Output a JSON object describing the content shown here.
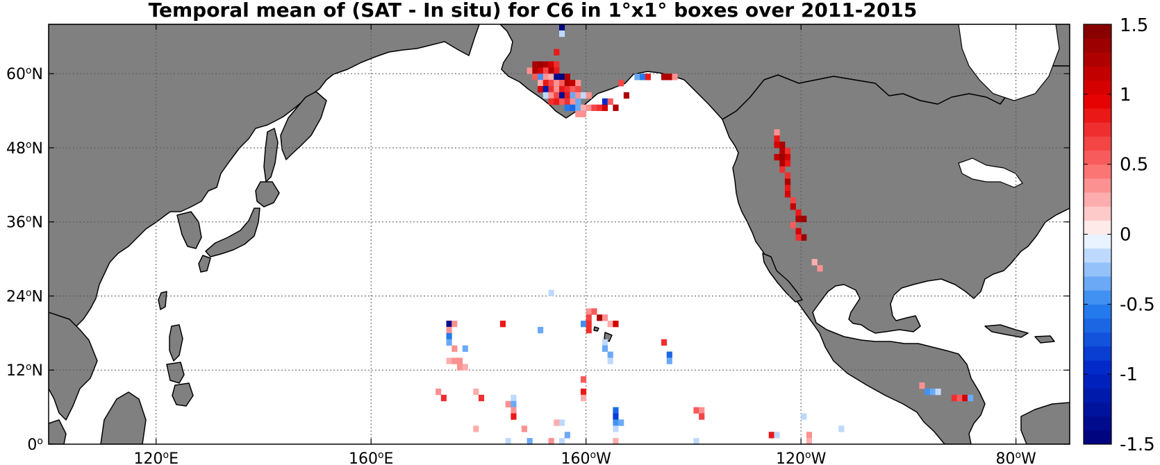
{
  "chart_data": {
    "type": "heatmap",
    "title": "Temporal mean of (SAT - In situ) for C6 in 1°x1° boxes over 2011-2015",
    "lon_range": [
      100,
      290
    ],
    "lat_range": [
      0,
      68
    ],
    "grid": true,
    "x_ticks": [
      {
        "value": 120,
        "deg": "120",
        "hem": "E"
      },
      {
        "value": 160,
        "deg": "160",
        "hem": "E"
      },
      {
        "value": 200,
        "deg": "160",
        "hem": "W"
      },
      {
        "value": 240,
        "deg": "120",
        "hem": "W"
      },
      {
        "value": 280,
        "deg": "80",
        "hem": "W"
      }
    ],
    "y_ticks": [
      {
        "value": 0,
        "deg": "0",
        "hem": ""
      },
      {
        "value": 12,
        "deg": "12",
        "hem": "N"
      },
      {
        "value": 24,
        "deg": "24",
        "hem": "N"
      },
      {
        "value": 36,
        "deg": "36",
        "hem": "N"
      },
      {
        "value": 48,
        "deg": "48",
        "hem": "N"
      },
      {
        "value": 60,
        "deg": "60",
        "hem": "N"
      }
    ],
    "colorbar": {
      "range": [
        -1.5,
        1.5
      ],
      "ticks": [
        1.5,
        1,
        0.5,
        0,
        -0.5,
        -1,
        -1.5
      ],
      "tick_labels": [
        "1.5",
        "1",
        "0.5",
        "0",
        "-0.5",
        "-1",
        "-1.5"
      ],
      "levels": 30,
      "placement": "right"
    },
    "land_color": "#808080",
    "ocean_color": "#ffffff",
    "cells": [
      {
        "lon": 190.5,
        "lat": 61.5,
        "value": 1.3
      },
      {
        "lon": 191.5,
        "lat": 61.5,
        "value": 1.4
      },
      {
        "lon": 192.5,
        "lat": 61.5,
        "value": 1.2
      },
      {
        "lon": 193.5,
        "lat": 61.5,
        "value": 1.0
      },
      {
        "lon": 194.5,
        "lat": 61.5,
        "value": 0.8
      },
      {
        "lon": 189.5,
        "lat": 60.5,
        "value": 0.3
      },
      {
        "lon": 190.5,
        "lat": 60.5,
        "value": 1.2
      },
      {
        "lon": 191.5,
        "lat": 60.5,
        "value": 1.0
      },
      {
        "lon": 192.5,
        "lat": 60.5,
        "value": 0.6
      },
      {
        "lon": 193.5,
        "lat": 60.5,
        "value": 1.3
      },
      {
        "lon": 194.5,
        "lat": 60.5,
        "value": 0.9
      },
      {
        "lon": 190.5,
        "lat": 59.5,
        "value": 0.5
      },
      {
        "lon": 191.5,
        "lat": 59.5,
        "value": -0.5
      },
      {
        "lon": 192.5,
        "lat": 59.5,
        "value": 0.3
      },
      {
        "lon": 193.5,
        "lat": 59.5,
        "value": 0.2
      },
      {
        "lon": 194.5,
        "lat": 59.5,
        "value": -1.3
      },
      {
        "lon": 195.5,
        "lat": 59.5,
        "value": -1.5
      },
      {
        "lon": 196.5,
        "lat": 59.5,
        "value": 1.3
      },
      {
        "lon": 191.5,
        "lat": 58.5,
        "value": 0.2
      },
      {
        "lon": 192.5,
        "lat": 58.5,
        "value": 0.9
      },
      {
        "lon": 193.5,
        "lat": 58.5,
        "value": 0.6
      },
      {
        "lon": 194.5,
        "lat": 58.5,
        "value": 0.4
      },
      {
        "lon": 195.5,
        "lat": 58.5,
        "value": 0.5
      },
      {
        "lon": 196.5,
        "lat": 58.5,
        "value": 1.3
      },
      {
        "lon": 197.5,
        "lat": 58.5,
        "value": 1.1
      },
      {
        "lon": 198.5,
        "lat": 58.5,
        "value": 0.3
      },
      {
        "lon": 191.5,
        "lat": 57.5,
        "value": 1.0
      },
      {
        "lon": 192.5,
        "lat": 57.5,
        "value": -1.2
      },
      {
        "lon": 193.5,
        "lat": 57.5,
        "value": 0.8
      },
      {
        "lon": 194.5,
        "lat": 57.5,
        "value": 0.4
      },
      {
        "lon": 195.5,
        "lat": 57.5,
        "value": 0.9
      },
      {
        "lon": 196.5,
        "lat": 57.5,
        "value": 0.7
      },
      {
        "lon": 197.5,
        "lat": 57.5,
        "value": 0.5
      },
      {
        "lon": 198.5,
        "lat": 57.5,
        "value": 0.6
      },
      {
        "lon": 192.5,
        "lat": 56.5,
        "value": -0.2
      },
      {
        "lon": 193.5,
        "lat": 56.5,
        "value": 0.3
      },
      {
        "lon": 194.5,
        "lat": 56.5,
        "value": 0.6
      },
      {
        "lon": 195.5,
        "lat": 56.5,
        "value": -1.4
      },
      {
        "lon": 196.5,
        "lat": 56.5,
        "value": 0.9
      },
      {
        "lon": 197.5,
        "lat": 56.5,
        "value": -0.3
      },
      {
        "lon": 198.5,
        "lat": 56.5,
        "value": 0.4
      },
      {
        "lon": 199.5,
        "lat": 56.5,
        "value": -0.2
      },
      {
        "lon": 200.5,
        "lat": 56.5,
        "value": 0.3
      },
      {
        "lon": 193.5,
        "lat": 55.5,
        "value": 0.7
      },
      {
        "lon": 194.5,
        "lat": 55.5,
        "value": 0.9
      },
      {
        "lon": 195.5,
        "lat": 55.5,
        "value": 0.5
      },
      {
        "lon": 196.5,
        "lat": 55.5,
        "value": 0.8
      },
      {
        "lon": 197.5,
        "lat": 55.5,
        "value": 0.3
      },
      {
        "lon": 198.5,
        "lat": 55.5,
        "value": -0.4
      },
      {
        "lon": 196.5,
        "lat": 54.5,
        "value": -0.6
      },
      {
        "lon": 197.5,
        "lat": 54.5,
        "value": -0.7
      },
      {
        "lon": 198.5,
        "lat": 54.5,
        "value": -0.3
      },
      {
        "lon": 199.5,
        "lat": 54.5,
        "value": 0.2
      },
      {
        "lon": 200.5,
        "lat": 54.5,
        "value": 0.4
      },
      {
        "lon": 201.5,
        "lat": 54.5,
        "value": 0.6
      },
      {
        "lon": 202.5,
        "lat": 54.5,
        "value": 0.8
      },
      {
        "lon": 203.5,
        "lat": 54.5,
        "value": 1.0
      },
      {
        "lon": 198.5,
        "lat": 53.5,
        "value": 0.3
      },
      {
        "lon": 199.5,
        "lat": 53.5,
        "value": 0.4
      },
      {
        "lon": 203.5,
        "lat": 55.5,
        "value": -0.9
      },
      {
        "lon": 204.5,
        "lat": 55.5,
        "value": 0.5
      },
      {
        "lon": 205.5,
        "lat": 54.5,
        "value": 1.3
      },
      {
        "lon": 207.5,
        "lat": 56.5,
        "value": 1.2
      },
      {
        "lon": 206.5,
        "lat": 58.5,
        "value": 0.6
      },
      {
        "lon": 209.5,
        "lat": 59.5,
        "value": -0.3
      },
      {
        "lon": 210.5,
        "lat": 59.5,
        "value": -0.6
      },
      {
        "lon": 211.5,
        "lat": 59.5,
        "value": 0.9
      },
      {
        "lon": 214.5,
        "lat": 59.5,
        "value": 1.2
      },
      {
        "lon": 215.5,
        "lat": 59.5,
        "value": 1.3
      },
      {
        "lon": 216.5,
        "lat": 59.5,
        "value": 0.3
      },
      {
        "lon": 195.5,
        "lat": 67.5,
        "value": -1.5
      },
      {
        "lon": 195.5,
        "lat": 66.5,
        "value": -0.2
      },
      {
        "lon": 194.5,
        "lat": 63.5,
        "value": 0.9
      },
      {
        "lon": 235.5,
        "lat": 50.5,
        "value": 0.4
      },
      {
        "lon": 235.5,
        "lat": 49.5,
        "value": 0.9
      },
      {
        "lon": 235.5,
        "lat": 48.5,
        "value": 1.0
      },
      {
        "lon": 236.5,
        "lat": 48.5,
        "value": 1.2
      },
      {
        "lon": 236.5,
        "lat": 47.5,
        "value": 1.3
      },
      {
        "lon": 237.5,
        "lat": 47.5,
        "value": 0.8
      },
      {
        "lon": 235.5,
        "lat": 46.5,
        "value": 1.1
      },
      {
        "lon": 236.5,
        "lat": 46.5,
        "value": 1.4
      },
      {
        "lon": 237.5,
        "lat": 46.5,
        "value": 1.0
      },
      {
        "lon": 236.5,
        "lat": 45.5,
        "value": 1.3
      },
      {
        "lon": 237.5,
        "lat": 45.5,
        "value": 0.9
      },
      {
        "lon": 236.5,
        "lat": 44.5,
        "value": 0.7
      },
      {
        "lon": 237.5,
        "lat": 43.5,
        "value": 0.8
      },
      {
        "lon": 237.5,
        "lat": 42.5,
        "value": 1.3
      },
      {
        "lon": 237.5,
        "lat": 41.5,
        "value": 0.9
      },
      {
        "lon": 237.5,
        "lat": 40.5,
        "value": 1.0
      },
      {
        "lon": 238.5,
        "lat": 39.5,
        "value": 0.6
      },
      {
        "lon": 238.5,
        "lat": 38.5,
        "value": 1.1
      },
      {
        "lon": 239.5,
        "lat": 37.5,
        "value": 0.9
      },
      {
        "lon": 239.5,
        "lat": 36.5,
        "value": 1.3
      },
      {
        "lon": 240.5,
        "lat": 36.5,
        "value": 1.4
      },
      {
        "lon": 238.5,
        "lat": 35.5,
        "value": 0.5
      },
      {
        "lon": 239.5,
        "lat": 34.5,
        "value": 1.0
      },
      {
        "lon": 240.5,
        "lat": 33.5,
        "value": 1.4
      },
      {
        "lon": 239.5,
        "lat": 33.5,
        "value": 0.8
      },
      {
        "lon": 242.5,
        "lat": 29.5,
        "value": 0.2
      },
      {
        "lon": 243.5,
        "lat": 28.5,
        "value": 0.3
      },
      {
        "lon": 174.5,
        "lat": 19.5,
        "value": -1.3
      },
      {
        "lon": 175.5,
        "lat": 19.5,
        "value": 0.3
      },
      {
        "lon": 174.5,
        "lat": 18.5,
        "value": 0.4
      },
      {
        "lon": 174.5,
        "lat": 17.5,
        "value": -0.6
      },
      {
        "lon": 174.5,
        "lat": 16.5,
        "value": -0.4
      },
      {
        "lon": 175.5,
        "lat": 15.5,
        "value": 0.3
      },
      {
        "lon": 177.5,
        "lat": 15.5,
        "value": -0.4
      },
      {
        "lon": 174.5,
        "lat": 13.5,
        "value": 0.2
      },
      {
        "lon": 175.5,
        "lat": 13.5,
        "value": 0.3
      },
      {
        "lon": 176.5,
        "lat": 13.5,
        "value": 0.4
      },
      {
        "lon": 176.5,
        "lat": 12.5,
        "value": 0.3
      },
      {
        "lon": 177.5,
        "lat": 12.5,
        "value": 0.2
      },
      {
        "lon": 184.5,
        "lat": 19.5,
        "value": 0.9
      },
      {
        "lon": 179.5,
        "lat": 8.5,
        "value": 0.2
      },
      {
        "lon": 180.5,
        "lat": 7.5,
        "value": 0.7
      },
      {
        "lon": 185.5,
        "lat": 6.5,
        "value": 0.4
      },
      {
        "lon": 186.5,
        "lat": 7.5,
        "value": -0.2
      },
      {
        "lon": 186.5,
        "lat": 6.5,
        "value": -0.3
      },
      {
        "lon": 186.5,
        "lat": 5.5,
        "value": 0.3
      },
      {
        "lon": 186.5,
        "lat": 4.5,
        "value": 0.9
      },
      {
        "lon": 188.5,
        "lat": 2.5,
        "value": 0.3
      },
      {
        "lon": 193.5,
        "lat": 24.5,
        "value": -0.2
      },
      {
        "lon": 191.5,
        "lat": 18.5,
        "value": -0.4
      },
      {
        "lon": 195.5,
        "lat": 3.5,
        "value": -0.2
      },
      {
        "lon": 196.5,
        "lat": 1.5,
        "value": -0.3
      },
      {
        "lon": 195.5,
        "lat": 0.5,
        "value": -0.2
      },
      {
        "lon": 199.5,
        "lat": 10.5,
        "value": 0.5
      },
      {
        "lon": 199.5,
        "lat": 8.5,
        "value": 0.9
      },
      {
        "lon": 199.5,
        "lat": 7.5,
        "value": 0.2
      },
      {
        "lon": 200.5,
        "lat": 21.5,
        "value": 0.3
      },
      {
        "lon": 201.5,
        "lat": 21.5,
        "value": 0.5
      },
      {
        "lon": 200.5,
        "lat": 20.5,
        "value": 0.6
      },
      {
        "lon": 202.5,
        "lat": 20.5,
        "value": 1.2
      },
      {
        "lon": 203.5,
        "lat": 20.5,
        "value": 0.4
      },
      {
        "lon": 199.5,
        "lat": 19.5,
        "value": -0.5
      },
      {
        "lon": 200.5,
        "lat": 19.5,
        "value": 0.8
      },
      {
        "lon": 204.5,
        "lat": 19.5,
        "value": 0.2
      },
      {
        "lon": 205.5,
        "lat": 19.5,
        "value": 1.0
      },
      {
        "lon": 200.5,
        "lat": 18.5,
        "value": 0.7
      },
      {
        "lon": 203.5,
        "lat": 16.5,
        "value": -0.2
      },
      {
        "lon": 203.5,
        "lat": 15.5,
        "value": -0.3
      },
      {
        "lon": 204.5,
        "lat": 14.5,
        "value": -0.4
      },
      {
        "lon": 204.5,
        "lat": 13.5,
        "value": -0.2
      },
      {
        "lon": 205.5,
        "lat": 5.5,
        "value": -0.7
      },
      {
        "lon": 205.5,
        "lat": 4.5,
        "value": -0.8
      },
      {
        "lon": 205.5,
        "lat": 3.5,
        "value": -0.5
      },
      {
        "lon": 205.5,
        "lat": 2.5,
        "value": -0.2
      },
      {
        "lon": 205.5,
        "lat": 0.5,
        "value": 0.2
      },
      {
        "lon": 206.5,
        "lat": 3.5,
        "value": -0.3
      },
      {
        "lon": 214.5,
        "lat": 16.5,
        "value": 0.7
      },
      {
        "lon": 215.5,
        "lat": 14.5,
        "value": -0.7
      },
      {
        "lon": 215.5,
        "lat": 13.5,
        "value": -0.4
      },
      {
        "lon": 220.5,
        "lat": 5.5,
        "value": 0.5
      },
      {
        "lon": 221.5,
        "lat": 5.5,
        "value": 0.4
      },
      {
        "lon": 221.5,
        "lat": 4.5,
        "value": 0.6
      },
      {
        "lon": 220.5,
        "lat": 0.5,
        "value": -0.2
      },
      {
        "lon": 234.5,
        "lat": 1.5,
        "value": 0.9
      },
      {
        "lon": 235.5,
        "lat": 1.5,
        "value": -0.2
      },
      {
        "lon": 172.5,
        "lat": 8.5,
        "value": 0.3
      },
      {
        "lon": 173.5,
        "lat": 7.5,
        "value": 0.7
      },
      {
        "lon": 179.5,
        "lat": 2.5,
        "value": 0.2
      },
      {
        "lon": 194.5,
        "lat": 3.5,
        "value": 0.2
      },
      {
        "lon": 193.5,
        "lat": 0.5,
        "value": 0.3
      },
      {
        "lon": 185.5,
        "lat": 0.5,
        "value": -0.2
      },
      {
        "lon": 189.5,
        "lat": 0.5,
        "value": -0.3
      },
      {
        "lon": 240.5,
        "lat": 4.5,
        "value": -0.2
      },
      {
        "lon": 241.5,
        "lat": 1.5,
        "value": 0.3
      },
      {
        "lon": 241.5,
        "lat": 0.5,
        "value": 0.2
      },
      {
        "lon": 247.5,
        "lat": 2.5,
        "value": -0.2
      },
      {
        "lon": 262.5,
        "lat": 9.5,
        "value": 0.3
      },
      {
        "lon": 263.5,
        "lat": 8.5,
        "value": -0.5
      },
      {
        "lon": 264.5,
        "lat": 8.5,
        "value": -0.3
      },
      {
        "lon": 265.5,
        "lat": 8.5,
        "value": -0.2
      },
      {
        "lon": 268.5,
        "lat": 7.5,
        "value": 0.8
      },
      {
        "lon": 269.5,
        "lat": 7.5,
        "value": 0.5
      },
      {
        "lon": 270.5,
        "lat": 7.5,
        "value": 1.0
      },
      {
        "lon": 271.5,
        "lat": 7.5,
        "value": -0.3
      }
    ]
  }
}
